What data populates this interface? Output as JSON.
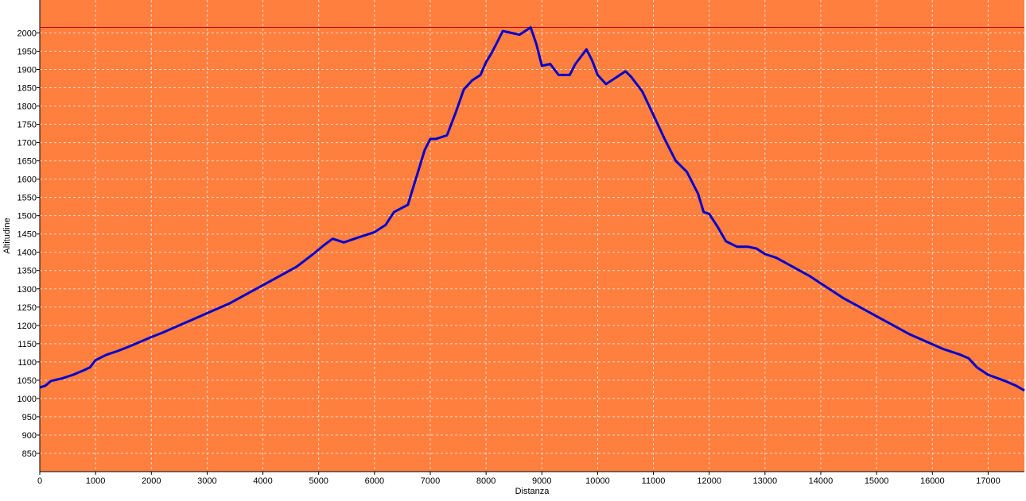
{
  "chart_data": {
    "type": "line",
    "title": "",
    "xlabel": "Distanza",
    "ylabel": "Altitudine",
    "xlim": [
      0,
      17650
    ],
    "ylim": [
      800,
      2090
    ],
    "x_ticks": [
      0,
      1000,
      2000,
      3000,
      4000,
      5000,
      6000,
      7000,
      8000,
      9000,
      10000,
      11000,
      12000,
      13000,
      14000,
      15000,
      16000,
      17000
    ],
    "y_ticks": [
      850,
      900,
      950,
      1000,
      1050,
      1100,
      1150,
      1200,
      1250,
      1300,
      1350,
      1400,
      1450,
      1500,
      1550,
      1600,
      1650,
      1700,
      1750,
      1800,
      1850,
      1900,
      1950,
      2000
    ],
    "grid": true,
    "background_color": "#ff7f3f",
    "line_color": "#0000cc",
    "reference_line": {
      "y": 2015,
      "color": "#cc0000"
    },
    "series": [
      {
        "name": "",
        "x": [
          0,
          100,
          200,
          400,
          600,
          800,
          900,
          1000,
          1200,
          1400,
          1600,
          1800,
          2000,
          2200,
          2500,
          2800,
          3100,
          3400,
          3700,
          4000,
          4300,
          4600,
          4900,
          5100,
          5250,
          5450,
          5700,
          6000,
          6200,
          6350,
          6600,
          6700,
          6800,
          6900,
          7000,
          7100,
          7300,
          7450,
          7600,
          7750,
          7900,
          8000,
          8100,
          8200,
          8300,
          8450,
          8600,
          8700,
          8800,
          8900,
          9000,
          9150,
          9300,
          9500,
          9600,
          9700,
          9800,
          9900,
          10000,
          10150,
          10300,
          10400,
          10500,
          10600,
          10800,
          11000,
          11200,
          11400,
          11600,
          11800,
          11900,
          12000,
          12150,
          12300,
          12500,
          12700,
          12850,
          13000,
          13200,
          13500,
          13800,
          14100,
          14400,
          14700,
          15000,
          15300,
          15600,
          15900,
          16200,
          16500,
          16650,
          16800,
          17000,
          17300,
          17500,
          17650
        ],
        "y": [
          1030,
          1035,
          1048,
          1055,
          1065,
          1078,
          1085,
          1105,
          1120,
          1130,
          1142,
          1155,
          1168,
          1180,
          1200,
          1220,
          1240,
          1260,
          1285,
          1310,
          1335,
          1360,
          1395,
          1420,
          1437,
          1427,
          1440,
          1455,
          1475,
          1510,
          1530,
          1580,
          1630,
          1680,
          1710,
          1710,
          1720,
          1780,
          1845,
          1870,
          1885,
          1920,
          1945,
          1975,
          2005,
          2000,
          1995,
          2005,
          2015,
          1970,
          1910,
          1915,
          1885,
          1885,
          1915,
          1935,
          1955,
          1925,
          1885,
          1860,
          1875,
          1885,
          1895,
          1880,
          1840,
          1775,
          1710,
          1650,
          1620,
          1560,
          1510,
          1505,
          1470,
          1430,
          1415,
          1415,
          1410,
          1395,
          1385,
          1360,
          1335,
          1305,
          1275,
          1250,
          1225,
          1200,
          1175,
          1155,
          1135,
          1120,
          1110,
          1085,
          1065,
          1048,
          1035,
          1022
        ]
      }
    ]
  }
}
